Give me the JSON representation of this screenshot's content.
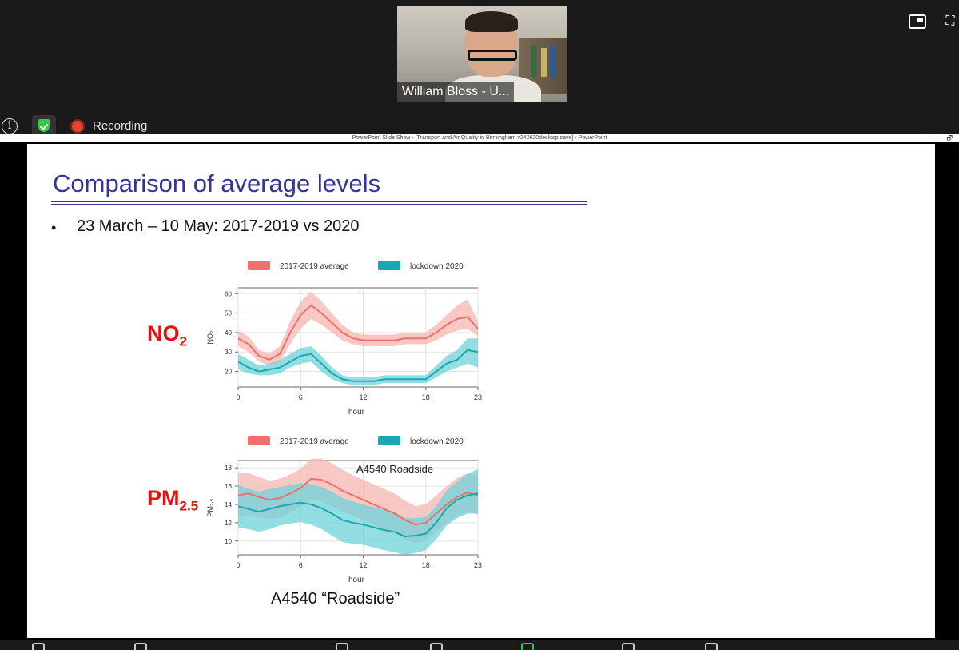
{
  "participant": {
    "name": "William Bloss - U..."
  },
  "meeting": {
    "recording_label": "Recording"
  },
  "powerpoint": {
    "window_title": "PowerPoint Slide Show - [Transport and Air Quality in Birmingham v240620desktop save] - PowerPoint",
    "minimize": "–",
    "restore": "🗗"
  },
  "slide": {
    "title": "Comparison of average levels",
    "bullet": "23 March – 10 May:  2017-2019 vs 2020",
    "no2_label": "NO",
    "no2_sub": "2",
    "pm_label": "PM",
    "pm_sub": "2.5",
    "caption": "A4540 “Roadside”"
  },
  "colors": {
    "baseline": "#f0706a",
    "baseline_band": "#f5b5b2",
    "lockdown": "#1aa8b0",
    "lockdown_band": "#6fd3d8"
  },
  "chart_data": [
    {
      "type": "line",
      "ylabel": "NO₂",
      "xlabel": "hour",
      "xticks": [
        0,
        6,
        12,
        18,
        23
      ],
      "yticks": [
        20,
        30,
        40,
        50,
        60
      ],
      "xlim": [
        0,
        23
      ],
      "ylim": [
        12,
        63
      ],
      "legend": [
        "2017-2019 average",
        "lockdown 2020"
      ],
      "legend_position": "top",
      "annotation": "",
      "x": [
        0,
        1,
        2,
        3,
        4,
        5,
        6,
        7,
        8,
        9,
        10,
        11,
        12,
        13,
        14,
        15,
        16,
        17,
        18,
        19,
        20,
        21,
        22,
        23
      ],
      "series": [
        {
          "name": "2017-2019 average",
          "values": [
            37,
            34,
            28,
            26,
            29,
            40,
            49,
            54,
            50,
            45,
            40,
            37,
            36,
            36,
            36,
            36,
            37,
            37,
            37,
            40,
            44,
            47,
            48,
            42
          ],
          "lower": [
            33,
            30,
            25,
            23,
            25,
            34,
            42,
            47,
            44,
            40,
            36,
            34,
            33,
            33,
            33,
            33,
            34,
            34,
            34,
            36,
            39,
            41,
            42,
            38
          ],
          "upper": [
            41,
            38,
            31,
            29,
            33,
            46,
            56,
            61,
            56,
            50,
            44,
            40,
            39,
            39,
            39,
            39,
            40,
            40,
            40,
            44,
            49,
            54,
            57,
            46
          ]
        },
        {
          "name": "lockdown 2020",
          "values": [
            25,
            22,
            20,
            21,
            22,
            25,
            28,
            29,
            24,
            19,
            16,
            15,
            15,
            15,
            16,
            16,
            16,
            16,
            16,
            20,
            24,
            26,
            31,
            30
          ],
          "lower": [
            21,
            19,
            18,
            18,
            19,
            22,
            24,
            25,
            20,
            16,
            14,
            13,
            13,
            13,
            14,
            14,
            14,
            14,
            14,
            17,
            20,
            22,
            24,
            22
          ],
          "upper": [
            29,
            26,
            23,
            24,
            26,
            29,
            32,
            33,
            28,
            22,
            18,
            17,
            17,
            17,
            18,
            18,
            18,
            18,
            18,
            23,
            28,
            31,
            37,
            37
          ]
        }
      ]
    },
    {
      "type": "line",
      "ylabel": "PM₂.₅",
      "xlabel": "hour",
      "xticks": [
        0,
        6,
        12,
        18,
        23
      ],
      "yticks": [
        10,
        12,
        14,
        16,
        18
      ],
      "xlim": [
        0,
        23
      ],
      "ylim": [
        8.5,
        18.8
      ],
      "legend": [
        "2017-2019 average",
        "lockdown 2020"
      ],
      "legend_position": "top",
      "annotation": "A4540 Roadside",
      "x": [
        0,
        1,
        2,
        3,
        4,
        5,
        6,
        7,
        8,
        9,
        10,
        11,
        12,
        13,
        14,
        15,
        16,
        17,
        18,
        19,
        20,
        21,
        22,
        23
      ],
      "series": [
        {
          "name": "2017-2019 average",
          "values": [
            15.0,
            15.2,
            14.8,
            14.5,
            14.7,
            15.2,
            15.8,
            16.8,
            16.7,
            16.2,
            15.5,
            15.0,
            14.5,
            14.0,
            13.5,
            13.0,
            12.3,
            11.8,
            12.0,
            13.0,
            14.0,
            14.8,
            15.3,
            15.0
          ],
          "lower": [
            12.6,
            12.9,
            12.6,
            12.4,
            12.6,
            13.1,
            13.7,
            14.5,
            14.3,
            13.8,
            13.2,
            12.8,
            12.3,
            11.8,
            11.3,
            10.8,
            10.2,
            9.8,
            10.0,
            11.0,
            12.0,
            12.7,
            13.2,
            12.9
          ],
          "upper": [
            17.4,
            17.4,
            17.0,
            16.6,
            16.8,
            17.3,
            17.9,
            19.0,
            19.0,
            18.5,
            17.8,
            17.2,
            16.7,
            16.2,
            15.7,
            15.2,
            14.4,
            13.8,
            14.0,
            15.0,
            16.0,
            16.9,
            17.4,
            17.1
          ]
        },
        {
          "name": "lockdown 2020",
          "values": [
            13.8,
            13.5,
            13.2,
            13.5,
            13.8,
            14.0,
            14.2,
            14.0,
            13.6,
            13.0,
            12.3,
            12.0,
            11.8,
            11.5,
            11.2,
            11.0,
            10.5,
            10.6,
            10.8,
            12.0,
            13.6,
            14.5,
            15.0,
            15.2
          ],
          "lower": [
            11.5,
            11.3,
            11.0,
            11.3,
            11.7,
            11.9,
            12.1,
            11.8,
            11.3,
            10.6,
            9.9,
            9.7,
            9.6,
            9.3,
            9.0,
            8.8,
            8.5,
            8.7,
            9.0,
            10.2,
            11.7,
            12.5,
            13.0,
            13.0
          ],
          "upper": [
            16.1,
            15.7,
            15.4,
            15.7,
            15.9,
            16.1,
            16.3,
            16.2,
            15.9,
            15.4,
            14.7,
            14.3,
            14.0,
            13.7,
            13.4,
            13.2,
            12.5,
            12.5,
            12.6,
            13.8,
            15.5,
            16.5,
            17.3,
            17.9
          ]
        }
      ]
    }
  ]
}
